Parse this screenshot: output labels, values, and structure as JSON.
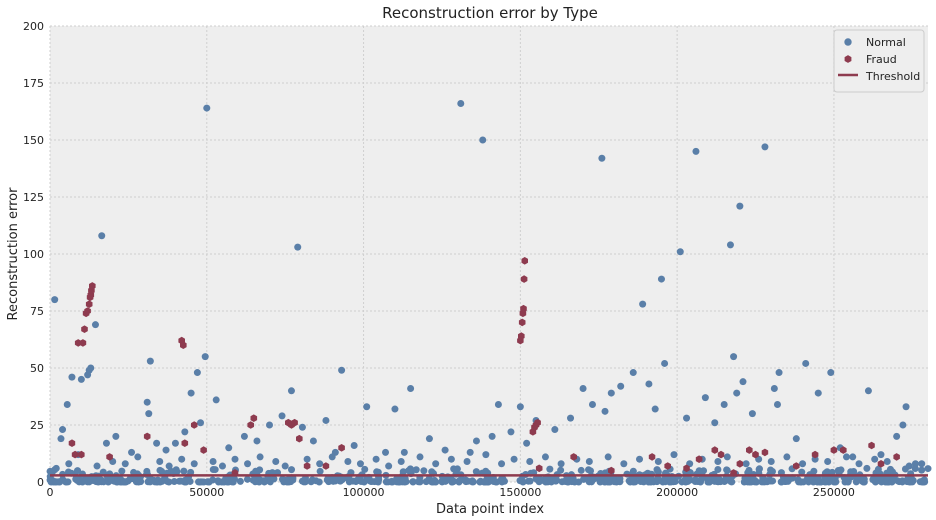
{
  "chart_data": {
    "type": "scatter",
    "title": "Reconstruction error by Type",
    "xlabel": "Data point index",
    "ylabel": "Reconstruction error",
    "xlim": [
      0,
      280000
    ],
    "ylim": [
      0,
      200
    ],
    "xticks": [
      0,
      50000,
      100000,
      150000,
      200000,
      250000
    ],
    "xtick_labels": [
      "0",
      "50000",
      "100000",
      "150000",
      "200000",
      "250000"
    ],
    "yticks": [
      0,
      25,
      50,
      75,
      100,
      125,
      150,
      175,
      200
    ],
    "ytick_labels": [
      "0",
      "25",
      "50",
      "75",
      "100",
      "125",
      "150",
      "175",
      "200"
    ],
    "grid": true,
    "legend_position": "top-right",
    "threshold": 2.9,
    "colors": {
      "normal": "#5a7fa8",
      "fraud": "#8e3b4f",
      "threshold": "#8e3b4f",
      "plot_bg": "#eeeeee",
      "grid": "#cfcfcf"
    },
    "series": [
      {
        "name": "Normal",
        "marker": "circle",
        "points": [
          [
            1500,
            80
          ],
          [
            3500,
            19
          ],
          [
            4000,
            23
          ],
          [
            5500,
            34
          ],
          [
            7000,
            46
          ],
          [
            10000,
            45
          ],
          [
            12000,
            47
          ],
          [
            12500,
            49
          ],
          [
            13000,
            50
          ],
          [
            14500,
            69
          ],
          [
            16500,
            108
          ],
          [
            18000,
            17
          ],
          [
            21000,
            20
          ],
          [
            26000,
            13
          ],
          [
            31000,
            35
          ],
          [
            31500,
            30
          ],
          [
            32000,
            53
          ],
          [
            34000,
            17
          ],
          [
            37000,
            14
          ],
          [
            40000,
            17
          ],
          [
            43000,
            22
          ],
          [
            45000,
            39
          ],
          [
            47000,
            48
          ],
          [
            48000,
            26
          ],
          [
            49500,
            55
          ],
          [
            50000,
            164
          ],
          [
            53000,
            36
          ],
          [
            57000,
            15
          ],
          [
            62000,
            20
          ],
          [
            66000,
            18
          ],
          [
            70000,
            25
          ],
          [
            74000,
            29
          ],
          [
            77000,
            40
          ],
          [
            79000,
            103
          ],
          [
            80500,
            24
          ],
          [
            84000,
            18
          ],
          [
            88000,
            27
          ],
          [
            91000,
            13
          ],
          [
            93000,
            49
          ],
          [
            97000,
            16
          ],
          [
            101000,
            33
          ],
          [
            107000,
            13
          ],
          [
            110000,
            32
          ],
          [
            113000,
            13
          ],
          [
            115000,
            41
          ],
          [
            121000,
            19
          ],
          [
            126000,
            14
          ],
          [
            131000,
            166
          ],
          [
            134000,
            13
          ],
          [
            136000,
            18
          ],
          [
            138000,
            150
          ],
          [
            141000,
            20
          ],
          [
            143000,
            34
          ],
          [
            147000,
            22
          ],
          [
            150000,
            33
          ],
          [
            152000,
            17
          ],
          [
            155000,
            27
          ],
          [
            161000,
            23
          ],
          [
            166000,
            28
          ],
          [
            170000,
            41
          ],
          [
            173000,
            34
          ],
          [
            176000,
            142
          ],
          [
            177000,
            31
          ],
          [
            179000,
            39
          ],
          [
            182000,
            42
          ],
          [
            186000,
            48
          ],
          [
            189000,
            78
          ],
          [
            191000,
            43
          ],
          [
            193000,
            32
          ],
          [
            195000,
            89
          ],
          [
            196000,
            52
          ],
          [
            201000,
            101
          ],
          [
            203000,
            28
          ],
          [
            206000,
            145
          ],
          [
            209000,
            37
          ],
          [
            212000,
            26
          ],
          [
            215000,
            34
          ],
          [
            217000,
            104
          ],
          [
            218000,
            55
          ],
          [
            219000,
            39
          ],
          [
            220000,
            121
          ],
          [
            221000,
            44
          ],
          [
            224000,
            30
          ],
          [
            228000,
            147
          ],
          [
            231000,
            41
          ],
          [
            232000,
            34
          ],
          [
            232500,
            48
          ],
          [
            238000,
            19
          ],
          [
            241000,
            52
          ],
          [
            245000,
            39
          ],
          [
            249000,
            48
          ],
          [
            252000,
            15
          ],
          [
            256000,
            11
          ],
          [
            261000,
            40
          ],
          [
            265000,
            12
          ],
          [
            270000,
            20
          ],
          [
            272000,
            25
          ],
          [
            273000,
            33
          ],
          [
            276000,
            8
          ],
          [
            2000,
            6
          ],
          [
            6000,
            8
          ],
          [
            9000,
            12
          ],
          [
            15000,
            7
          ],
          [
            20000,
            9
          ],
          [
            24000,
            8
          ],
          [
            28000,
            11
          ],
          [
            35000,
            9
          ],
          [
            38000,
            7
          ],
          [
            42000,
            10
          ],
          [
            46000,
            8
          ],
          [
            52000,
            9
          ],
          [
            55000,
            7
          ],
          [
            59000,
            10
          ],
          [
            63000,
            8
          ],
          [
            67000,
            11
          ],
          [
            72000,
            9
          ],
          [
            75000,
            7
          ],
          [
            82000,
            10
          ],
          [
            86000,
            8
          ],
          [
            90000,
            11
          ],
          [
            95000,
            9
          ],
          [
            99000,
            8
          ],
          [
            104000,
            10
          ],
          [
            108000,
            7
          ],
          [
            112000,
            9
          ],
          [
            118000,
            11
          ],
          [
            123000,
            8
          ],
          [
            128000,
            10
          ],
          [
            133000,
            9
          ],
          [
            139000,
            12
          ],
          [
            144000,
            8
          ],
          [
            148000,
            10
          ],
          [
            153000,
            9
          ],
          [
            158000,
            11
          ],
          [
            163000,
            8
          ],
          [
            168000,
            10
          ],
          [
            172000,
            9
          ],
          [
            178000,
            11
          ],
          [
            183000,
            8
          ],
          [
            188000,
            10
          ],
          [
            194000,
            9
          ],
          [
            199000,
            12
          ],
          [
            204000,
            8
          ],
          [
            208000,
            10
          ],
          [
            213000,
            9
          ],
          [
            216000,
            11
          ],
          [
            222000,
            8
          ],
          [
            226000,
            10
          ],
          [
            230000,
            9
          ],
          [
            235000,
            11
          ],
          [
            240000,
            8
          ],
          [
            244000,
            10
          ],
          [
            248000,
            9
          ],
          [
            254000,
            11
          ],
          [
            258000,
            8
          ],
          [
            263000,
            10
          ],
          [
            267000,
            9
          ],
          [
            274000,
            7
          ],
          [
            278000,
            8
          ]
        ]
      },
      {
        "name": "Fraud",
        "marker": "hexagon",
        "points": [
          [
            7000,
            17
          ],
          [
            8000,
            12
          ],
          [
            9000,
            61
          ],
          [
            10000,
            12
          ],
          [
            10500,
            61
          ],
          [
            11000,
            67
          ],
          [
            11500,
            74
          ],
          [
            12000,
            75
          ],
          [
            12500,
            78
          ],
          [
            12800,
            81
          ],
          [
            13000,
            82
          ],
          [
            13200,
            84
          ],
          [
            13500,
            86
          ],
          [
            19000,
            11
          ],
          [
            31000,
            20
          ],
          [
            42000,
            62
          ],
          [
            42500,
            60
          ],
          [
            43000,
            17
          ],
          [
            46000,
            25
          ],
          [
            49000,
            14
          ],
          [
            59000,
            4
          ],
          [
            64000,
            25
          ],
          [
            65000,
            28
          ],
          [
            76000,
            26
          ],
          [
            77000,
            25
          ],
          [
            78000,
            26
          ],
          [
            79500,
            19
          ],
          [
            82000,
            7
          ],
          [
            88000,
            7
          ],
          [
            93000,
            15
          ],
          [
            150000,
            62
          ],
          [
            150300,
            64
          ],
          [
            150600,
            70
          ],
          [
            150800,
            74
          ],
          [
            151000,
            76
          ],
          [
            151200,
            89
          ],
          [
            151400,
            97
          ],
          [
            154000,
            22
          ],
          [
            154500,
            24
          ],
          [
            155000,
            25
          ],
          [
            155500,
            26
          ],
          [
            156000,
            6
          ],
          [
            167000,
            11
          ],
          [
            179000,
            5
          ],
          [
            192000,
            11
          ],
          [
            197000,
            7
          ],
          [
            203000,
            6
          ],
          [
            207000,
            10
          ],
          [
            212000,
            14
          ],
          [
            214000,
            12
          ],
          [
            218000,
            4
          ],
          [
            220000,
            8
          ],
          [
            223000,
            14
          ],
          [
            225000,
            12
          ],
          [
            228000,
            13
          ],
          [
            238000,
            7
          ],
          [
            244000,
            12
          ],
          [
            250000,
            14
          ],
          [
            253000,
            14
          ],
          [
            262000,
            16
          ],
          [
            265000,
            8
          ],
          [
            270000,
            11
          ]
        ]
      },
      {
        "name": "Threshold",
        "marker": "line"
      }
    ]
  }
}
